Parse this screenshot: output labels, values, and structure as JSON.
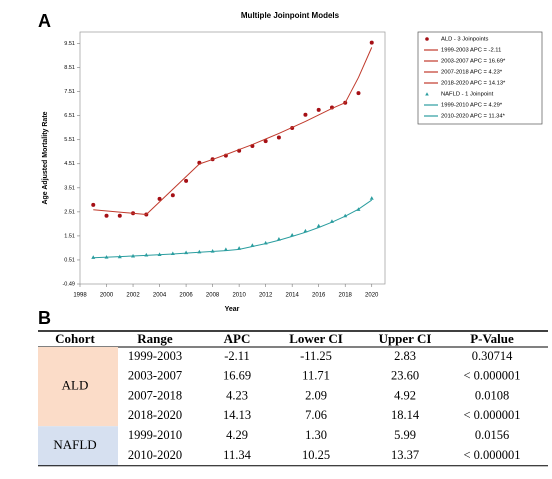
{
  "panel_labels": [
    "A",
    "B"
  ],
  "chart_data": {
    "type": "joinpoint",
    "title": "Multiple Joinpoint Models",
    "x_label": "Year",
    "y_label": "Age Adjusted Mortality Rate",
    "xlim": [
      1998,
      2021
    ],
    "xticks": [
      1998,
      2000,
      2002,
      2004,
      2006,
      2008,
      2010,
      2012,
      2014,
      2016,
      2018,
      2020
    ],
    "ylim": [
      -0.49,
      9.99
    ],
    "yticks": [
      -0.49,
      0.51,
      1.51,
      2.51,
      3.51,
      4.51,
      5.51,
      6.51,
      7.51,
      8.51,
      9.51
    ],
    "legend": "right",
    "series": [
      {
        "name": "ALD - 3 Joinpoints",
        "style": "circle",
        "color": "#a50f15",
        "x": [
          1999,
          2000,
          2001,
          2002,
          2003,
          2004,
          2005,
          2006,
          2007,
          2008,
          2009,
          2010,
          2011,
          2012,
          2013,
          2014,
          2015,
          2016,
          2017,
          2018,
          2019,
          2020
        ],
        "values": [
          2.8,
          2.35,
          2.35,
          2.45,
          2.4,
          3.05,
          3.2,
          3.8,
          4.55,
          4.7,
          4.85,
          5.05,
          5.25,
          5.45,
          5.6,
          6.0,
          6.55,
          6.75,
          6.85,
          7.05,
          7.45,
          9.55
        ]
      },
      {
        "name": "1999-2003 APC = -2.11",
        "style": "line",
        "color": "#c0392b",
        "x": [
          1999,
          2003
        ],
        "values": [
          2.6,
          2.4
        ]
      },
      {
        "name": "2003-2007 APC = 16.69*",
        "style": "line",
        "color": "#c0392b",
        "x": [
          2003,
          2007
        ],
        "values": [
          2.4,
          4.5
        ]
      },
      {
        "name": "2007-2018 APC = 4.23*",
        "style": "line",
        "color": "#c0392b",
        "x": [
          2007,
          2008,
          2009,
          2010,
          2011,
          2012,
          2013,
          2014,
          2015,
          2016,
          2017,
          2018
        ],
        "values": [
          4.5,
          4.69,
          4.89,
          5.1,
          5.31,
          5.54,
          5.77,
          6.02,
          6.27,
          6.54,
          6.81,
          7.05
        ]
      },
      {
        "name": "2018-2020 APC = 14.13*",
        "style": "line",
        "color": "#c0392b",
        "x": [
          2018,
          2019,
          2020
        ],
        "values": [
          7.05,
          8.1,
          9.35
        ]
      },
      {
        "name": "NAFLD - 1 Joinpoint",
        "style": "triangle",
        "color": "#2a9d9f",
        "x": [
          1999,
          2000,
          2001,
          2002,
          2003,
          2004,
          2005,
          2006,
          2007,
          2008,
          2009,
          2010,
          2011,
          2012,
          2013,
          2014,
          2015,
          2016,
          2017,
          2018,
          2019,
          2020
        ],
        "values": [
          0.62,
          0.63,
          0.65,
          0.68,
          0.72,
          0.74,
          0.78,
          0.82,
          0.85,
          0.88,
          0.95,
          1.0,
          1.12,
          1.22,
          1.38,
          1.55,
          1.72,
          1.93,
          2.12,
          2.35,
          2.62,
          3.08
        ]
      },
      {
        "name": "1999-2010 APC = 4.29*",
        "style": "line",
        "color": "#2a9d9f",
        "x": [
          1999,
          2001,
          2003,
          2005,
          2007,
          2009,
          2010
        ],
        "values": [
          0.6,
          0.65,
          0.7,
          0.76,
          0.83,
          0.9,
          0.95
        ]
      },
      {
        "name": "2010-2020 APC = 11.34*",
        "style": "line",
        "color": "#2a9d9f",
        "x": [
          2010,
          2011,
          2012,
          2013,
          2014,
          2015,
          2016,
          2017,
          2018,
          2019,
          2020
        ],
        "values": [
          0.95,
          1.07,
          1.19,
          1.33,
          1.49,
          1.66,
          1.86,
          2.08,
          2.33,
          2.62,
          3.0
        ]
      }
    ]
  },
  "table": {
    "header": [
      "Cohort",
      "Range",
      "APC",
      "Lower CI",
      "Upper CI",
      "P-Value"
    ],
    "groups": [
      {
        "cohort": "ALD",
        "color": "#fbdcc8",
        "rows": [
          [
            "1999-2003",
            "-2.11",
            "-11.25",
            "2.83",
            "0.30714"
          ],
          [
            "2003-2007",
            "16.69",
            "11.71",
            "23.60",
            "< 0.000001"
          ],
          [
            "2007-2018",
            "4.23",
            "2.09",
            "4.92",
            "0.0108"
          ],
          [
            "2018-2020",
            "14.13",
            "7.06",
            "18.14",
            "< 0.000001"
          ]
        ]
      },
      {
        "cohort": "NAFLD",
        "color": "#d6e0f0",
        "rows": [
          [
            "1999-2010",
            "4.29",
            "1.30",
            "5.99",
            "0.0156"
          ],
          [
            "2010-2020",
            "11.34",
            "10.25",
            "13.37",
            "< 0.000001"
          ]
        ]
      }
    ]
  }
}
